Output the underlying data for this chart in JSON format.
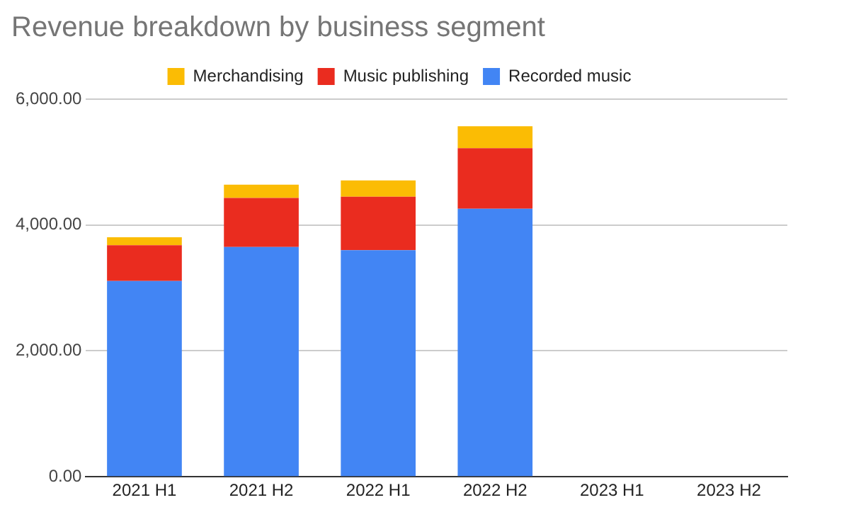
{
  "chart_data": {
    "type": "bar",
    "title": "Revenue breakdown by business segment",
    "categories": [
      "2021 H1",
      "2021 H2",
      "2022 H1",
      "2022 H2",
      "2023 H1",
      "2023 H2"
    ],
    "stacked": true,
    "series": [
      {
        "name": "Recorded music",
        "color": "#4285f4",
        "values": [
          3110,
          3650,
          3600,
          4260,
          null,
          null
        ]
      },
      {
        "name": "Music publishing",
        "color": "#ea2c1f",
        "values": [
          570,
          780,
          850,
          960,
          null,
          null
        ]
      },
      {
        "name": "Merchandising",
        "color": "#fbbc04",
        "values": [
          125,
          210,
          260,
          350,
          null,
          null
        ]
      }
    ],
    "ylim": [
      0,
      6000
    ],
    "yticks": [
      {
        "value": 0,
        "label": "0.00"
      },
      {
        "value": 2000,
        "label": "2,000.00"
      },
      {
        "value": 4000,
        "label": "4,000.00"
      },
      {
        "value": 6000,
        "label": "6,000.00"
      }
    ],
    "grid": "y",
    "legend": "top"
  }
}
